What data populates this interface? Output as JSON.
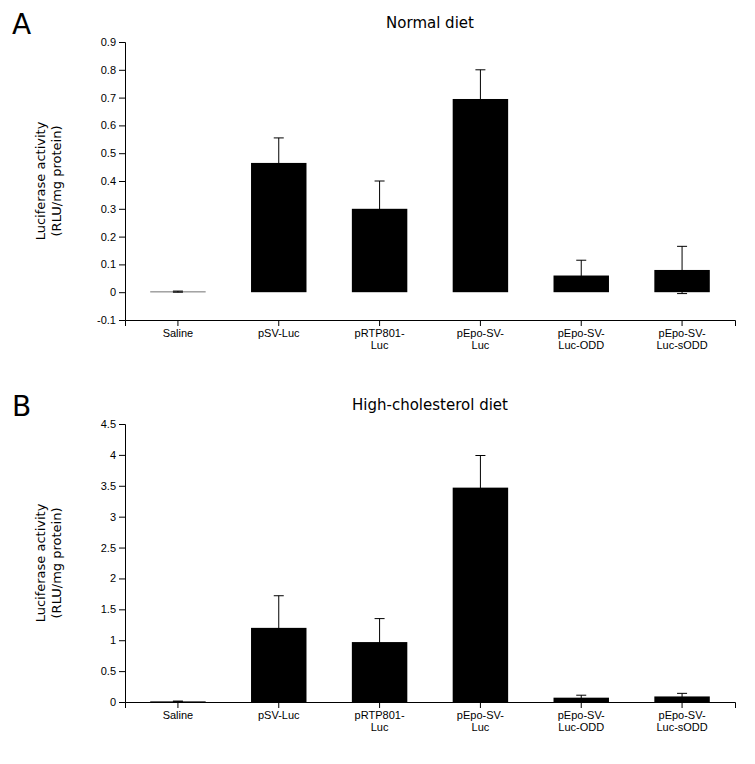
{
  "chart_data": [
    {
      "type": "bar",
      "title": "Normal diet",
      "categories": [
        "Saline",
        "pSV-Luc",
        "pRTP801-\nLuc",
        "pEpo-SV-\nLuc",
        "pEpo-SV-\nLuc-ODD",
        "pEpo-SV-\nLuc-sODD"
      ],
      "values": [
        0.002,
        0.465,
        0.3,
        0.695,
        0.06,
        0.08
      ],
      "errors": [
        0.002,
        0.09,
        0.1,
        0.105,
        0.055,
        0.085
      ],
      "ylim": [
        -0.1,
        0.9
      ],
      "yticks": [
        -0.1,
        0,
        0.1,
        0.2,
        0.3,
        0.4,
        0.5,
        0.6,
        0.7,
        0.8,
        0.9
      ],
      "ylabel": "Luciferase activity\n(RLU/mg protein)",
      "color": "#000000",
      "annotations": [
        "A"
      ]
    },
    {
      "type": "bar",
      "title": "High-cholesterol diet",
      "categories": [
        "Saline",
        "pSV-Luc",
        "pRTP801-\nLuc",
        "pEpo-SV-\nLuc",
        "pEpo-SV-\nLuc-ODD",
        "pEpo-SV-\nLuc-sODD"
      ],
      "values": [
        0.01,
        1.2,
        0.97,
        3.47,
        0.07,
        0.09
      ],
      "errors": [
        0.005,
        0.52,
        0.38,
        0.52,
        0.04,
        0.05
      ],
      "ylim": [
        0,
        4.5
      ],
      "yticks": [
        0,
        0.5,
        1,
        1.5,
        2,
        2.5,
        3,
        3.5,
        4,
        4.5
      ],
      "ylabel": "Luciferase activity\n(RLU/mg protein)",
      "color": "#000000",
      "annotations": [
        "B"
      ]
    }
  ]
}
